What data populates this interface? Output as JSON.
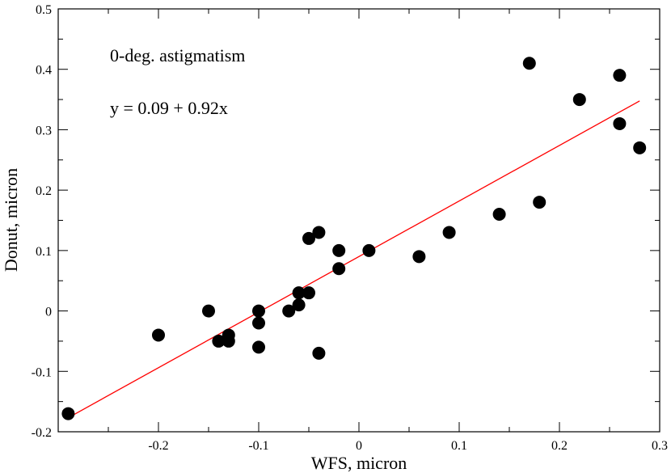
{
  "chart_data": {
    "type": "scatter",
    "title": "",
    "xlabel": "WFS, micron",
    "ylabel": "Donut, micron",
    "xlim": [
      -0.3,
      0.3
    ],
    "ylim": [
      -0.2,
      0.5
    ],
    "xticks": [
      -0.2,
      -0.1,
      0,
      0.1,
      0.2,
      0.3
    ],
    "xtick_labels": [
      "-0.2",
      "-0.1",
      "0",
      "0.1",
      "0.2",
      "0.3"
    ],
    "yticks": [
      -0.2,
      -0.1,
      0,
      0.1,
      0.2,
      0.3,
      0.4,
      0.5
    ],
    "ytick_labels": [
      "-0.2",
      "-0.1",
      "0",
      "0.1",
      "0.2",
      "0.3",
      "0.4",
      "0.5"
    ],
    "grid": false,
    "annotations": [
      "0-deg. astigmatism",
      "y = 0.09 + 0.92x"
    ],
    "series": [
      {
        "name": "data",
        "color": "#000000",
        "points": [
          [
            -0.29,
            -0.17
          ],
          [
            -0.2,
            -0.04
          ],
          [
            -0.15,
            0.0
          ],
          [
            -0.14,
            -0.05
          ],
          [
            -0.13,
            -0.04
          ],
          [
            -0.13,
            -0.05
          ],
          [
            -0.1,
            0.0
          ],
          [
            -0.1,
            -0.02
          ],
          [
            -0.1,
            -0.06
          ],
          [
            -0.07,
            0.0
          ],
          [
            -0.06,
            0.01
          ],
          [
            -0.06,
            0.03
          ],
          [
            -0.05,
            0.03
          ],
          [
            -0.05,
            0.12
          ],
          [
            -0.04,
            0.13
          ],
          [
            -0.04,
            -0.07
          ],
          [
            -0.02,
            0.1
          ],
          [
            -0.02,
            0.07
          ],
          [
            0.01,
            0.1
          ],
          [
            0.06,
            0.09
          ],
          [
            0.09,
            0.13
          ],
          [
            0.14,
            0.16
          ],
          [
            0.17,
            0.41
          ],
          [
            0.18,
            0.18
          ],
          [
            0.22,
            0.35
          ],
          [
            0.26,
            0.39
          ],
          [
            0.26,
            0.31
          ],
          [
            0.28,
            0.27
          ]
        ]
      }
    ],
    "fit_line": {
      "name": "y = 0.09 + 0.92x",
      "color": "#ff0000",
      "intercept": 0.09,
      "slope": 0.92,
      "x_range": [
        -0.29,
        0.28
      ]
    }
  }
}
